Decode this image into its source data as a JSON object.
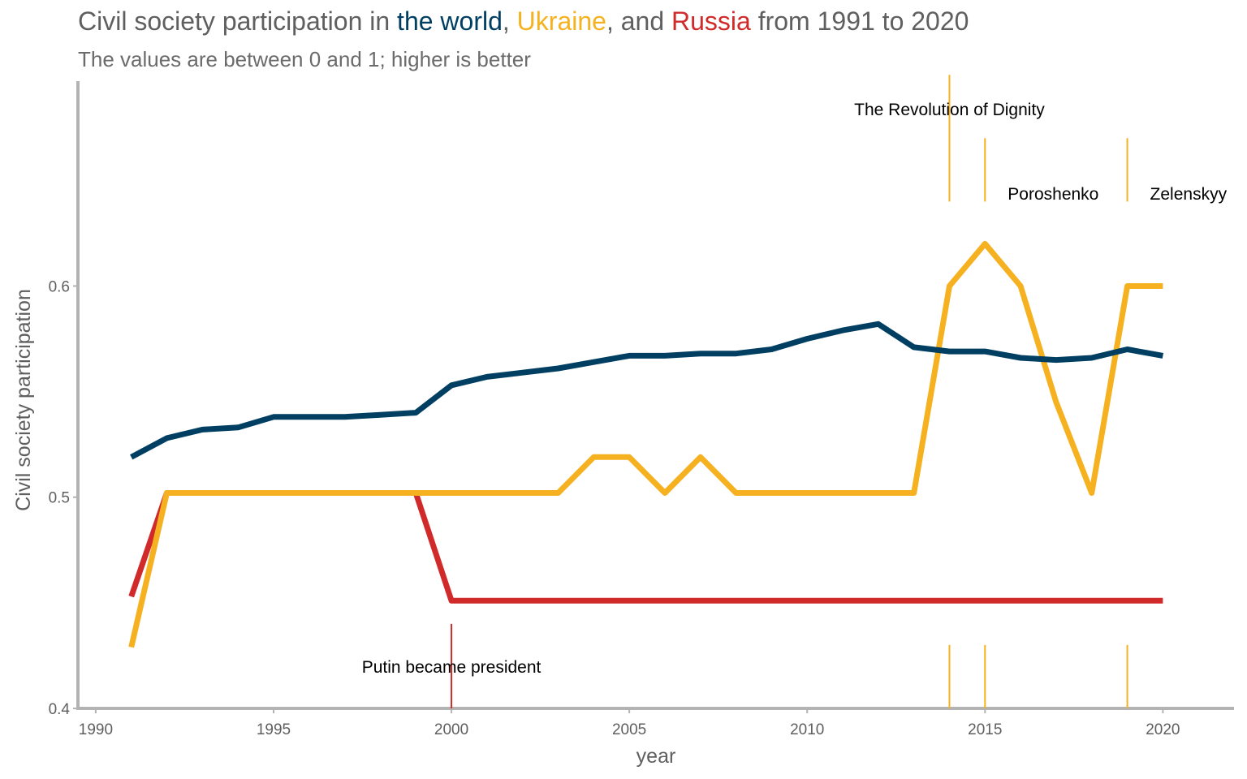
{
  "title": {
    "prefix": "Civil society participation in ",
    "world": "the world",
    "sep1": ", ",
    "ukraine": "Ukraine",
    "sep2": ", and ",
    "russia": "Russia",
    "suffix": " from 1991 to 2020"
  },
  "subtitle": "The values are between 0 and 1; higher is better",
  "colors": {
    "world": "#003f62",
    "ukraine": "#f5b120",
    "russia": "#d12a2a",
    "text": "#5f5f5f",
    "axis": "#b3b3b3"
  },
  "chart_data": {
    "type": "line",
    "xlabel": "year",
    "ylabel": "Civil society participation",
    "xlim": [
      1989.5,
      2022
    ],
    "ylim": [
      0.4,
      0.697
    ],
    "xticks": [
      1990,
      1995,
      2000,
      2005,
      2010,
      2015,
      2020
    ],
    "yticks": [
      0.4,
      0.5,
      0.6
    ],
    "ytick_labels": [
      "0.4",
      "0.5",
      "0.6"
    ],
    "grid": false,
    "legend": "none",
    "series": [
      {
        "name": "Russia",
        "color_key": "russia",
        "x": [
          1991,
          1992,
          1993,
          1994,
          1995,
          1996,
          1997,
          1998,
          1999,
          2000,
          2001,
          2002,
          2003,
          2004,
          2005,
          2006,
          2007,
          2008,
          2009,
          2010,
          2011,
          2012,
          2013,
          2014,
          2015,
          2016,
          2017,
          2018,
          2019,
          2020
        ],
        "y": [
          0.453,
          0.502,
          0.502,
          0.502,
          0.502,
          0.502,
          0.502,
          0.502,
          0.502,
          0.451,
          0.451,
          0.451,
          0.451,
          0.451,
          0.451,
          0.451,
          0.451,
          0.451,
          0.451,
          0.451,
          0.451,
          0.451,
          0.451,
          0.451,
          0.451,
          0.451,
          0.451,
          0.451,
          0.451,
          0.451
        ]
      },
      {
        "name": "Ukraine",
        "color_key": "ukraine",
        "x": [
          1991,
          1992,
          1993,
          1994,
          1995,
          1996,
          1997,
          1998,
          1999,
          2000,
          2001,
          2002,
          2003,
          2004,
          2005,
          2006,
          2007,
          2008,
          2009,
          2010,
          2011,
          2012,
          2013,
          2014,
          2015,
          2016,
          2017,
          2018,
          2019,
          2020
        ],
        "y": [
          0.429,
          0.502,
          0.502,
          0.502,
          0.502,
          0.502,
          0.502,
          0.502,
          0.502,
          0.502,
          0.502,
          0.502,
          0.502,
          0.519,
          0.519,
          0.502,
          0.519,
          0.502,
          0.502,
          0.502,
          0.502,
          0.502,
          0.502,
          0.6,
          0.62,
          0.6,
          0.545,
          0.502,
          0.6,
          0.6
        ]
      },
      {
        "name": "the world",
        "color_key": "world",
        "x": [
          1991,
          1992,
          1993,
          1994,
          1995,
          1996,
          1997,
          1998,
          1999,
          2000,
          2001,
          2002,
          2003,
          2004,
          2005,
          2006,
          2007,
          2008,
          2009,
          2010,
          2011,
          2012,
          2013,
          2014,
          2015,
          2016,
          2017,
          2018,
          2019,
          2020
        ],
        "y": [
          0.519,
          0.528,
          0.532,
          0.533,
          0.538,
          0.538,
          0.538,
          0.539,
          0.54,
          0.553,
          0.557,
          0.559,
          0.561,
          0.564,
          0.567,
          0.567,
          0.568,
          0.568,
          0.57,
          0.575,
          0.579,
          0.582,
          0.571,
          0.569,
          0.569,
          0.566,
          0.565,
          0.566,
          0.57,
          0.567
        ]
      }
    ],
    "annotations": [
      {
        "label": "Putin became president",
        "x": 2000,
        "color_key": "russia",
        "line_y": [
          0.4,
          0.44
        ],
        "text_y": 0.4195,
        "anchor": "middle"
      },
      {
        "label": "The Revolution of Dignity",
        "x": 2014,
        "color_key": "ukraine",
        "line_y": [
          0.64,
          0.7
        ],
        "text_y": 0.6835,
        "anchor": "middle"
      },
      {
        "label": "Poroshenko",
        "x": 2015,
        "color_key": "ukraine",
        "line_y": [
          0.64,
          0.67
        ],
        "text_y": 0.6435,
        "anchor": "start"
      },
      {
        "label": "Zelenskyy",
        "x": 2019,
        "color_key": "ukraine",
        "line_y": [
          0.64,
          0.67
        ],
        "text_y": 0.6435,
        "anchor": "start"
      }
    ],
    "bottom_markers": [
      {
        "x": 2014,
        "color_key": "ukraine",
        "y": [
          0.4,
          0.43
        ]
      },
      {
        "x": 2015,
        "color_key": "ukraine",
        "y": [
          0.4,
          0.43
        ]
      },
      {
        "x": 2019,
        "color_key": "ukraine",
        "y": [
          0.4,
          0.43
        ]
      }
    ]
  }
}
